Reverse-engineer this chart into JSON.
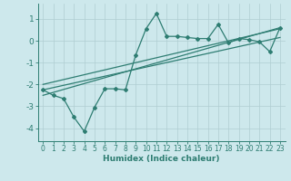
{
  "xlabel": "Humidex (Indice chaleur)",
  "bg_color": "#cde8ec",
  "line_color": "#2e7d72",
  "grid_color": "#b0cdd2",
  "xlim": [
    -0.5,
    23.5
  ],
  "ylim": [
    -4.6,
    1.7
  ],
  "yticks": [
    1,
    0,
    -1,
    -2,
    -3,
    -4
  ],
  "xticks": [
    0,
    1,
    2,
    3,
    4,
    5,
    6,
    7,
    8,
    9,
    10,
    11,
    12,
    13,
    14,
    15,
    16,
    17,
    18,
    19,
    20,
    21,
    22,
    23
  ],
  "series1_x": [
    0,
    1,
    2,
    3,
    4,
    5,
    6,
    7,
    8,
    9,
    10,
    11,
    12,
    13,
    14,
    15,
    16,
    17,
    18,
    19,
    20,
    21,
    22,
    23
  ],
  "series1_y": [
    -2.25,
    -2.5,
    -2.65,
    -3.5,
    -4.15,
    -3.05,
    -2.2,
    -2.2,
    -2.25,
    -0.65,
    0.55,
    1.25,
    0.2,
    0.2,
    0.15,
    0.1,
    0.1,
    0.75,
    -0.1,
    0.1,
    0.05,
    -0.05,
    -0.5,
    0.6
  ],
  "series2_x": [
    0,
    23
  ],
  "series2_y": [
    -2.25,
    0.15
  ],
  "series3_x": [
    0,
    23
  ],
  "series3_y": [
    -2.0,
    0.55
  ],
  "series4_x": [
    0,
    23
  ],
  "series4_y": [
    -2.5,
    0.6
  ]
}
